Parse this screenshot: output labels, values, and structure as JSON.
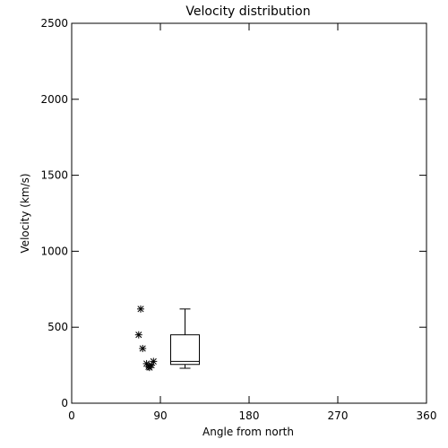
{
  "chart_data": {
    "type": "scatter",
    "title": "Velocity distribution",
    "xlabel": "Angle from north",
    "ylabel": "Velocity (km/s)",
    "xlim": [
      0,
      360
    ],
    "ylim": [
      0,
      2500
    ],
    "xticks": [
      0,
      90,
      180,
      270,
      360
    ],
    "yticks": [
      0,
      500,
      1000,
      1500,
      2000,
      2500
    ],
    "grid": false,
    "points": [
      {
        "x": 70,
        "y": 620
      },
      {
        "x": 68,
        "y": 450
      },
      {
        "x": 72,
        "y": 360
      },
      {
        "x": 76,
        "y": 260
      },
      {
        "x": 78,
        "y": 240
      },
      {
        "x": 79,
        "y": 235
      },
      {
        "x": 81,
        "y": 250
      },
      {
        "x": 83,
        "y": 275
      }
    ],
    "boxplot": {
      "x": 115,
      "whisker_low": 230,
      "q1": 255,
      "median": 275,
      "q3": 450,
      "whisker_high": 620
    }
  }
}
